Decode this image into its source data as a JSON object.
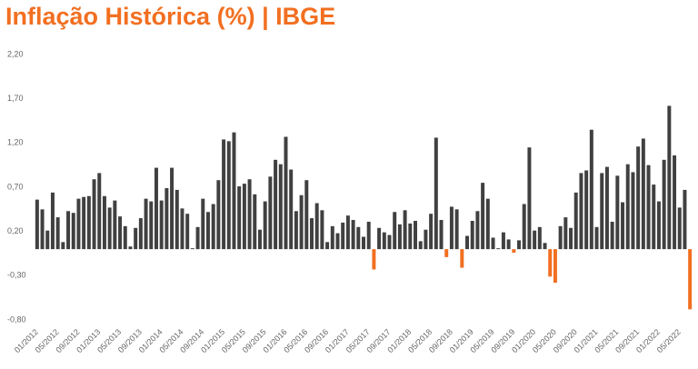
{
  "chart_data": {
    "type": "bar",
    "title": "Inflação Histórica (%) | IBGE",
    "categories": [
      "01/2012",
      null,
      null,
      null,
      "05/2012",
      null,
      null,
      null,
      "09/2012",
      null,
      null,
      null,
      "01/2013",
      null,
      null,
      null,
      "05/2013",
      null,
      null,
      null,
      "09/2013",
      null,
      null,
      null,
      "01/2014",
      null,
      null,
      null,
      "05/2014",
      null,
      null,
      null,
      "09/2014",
      null,
      null,
      null,
      "01/2015",
      null,
      null,
      null,
      "05/2015",
      null,
      null,
      null,
      "09/2015",
      null,
      null,
      null,
      "01/2016",
      null,
      null,
      null,
      "05/2016",
      null,
      null,
      null,
      "09/2016",
      null,
      null,
      null,
      "01/2017",
      null,
      null,
      null,
      "05/2017",
      null,
      null,
      null,
      "09/2017",
      null,
      null,
      null,
      "01/2018",
      null,
      null,
      null,
      "05/2018",
      null,
      null,
      null,
      "09/2018",
      null,
      null,
      null,
      "01/2019",
      null,
      null,
      null,
      "05/2019",
      null,
      null,
      null,
      "09/2019",
      null,
      null,
      null,
      "01/2020",
      null,
      null,
      null,
      "05/2020",
      null,
      null,
      null,
      "09/2020",
      null,
      null,
      null,
      "01/2021",
      null,
      null,
      null,
      "05/2021",
      null,
      null,
      null,
      "09/2021",
      null,
      null,
      null,
      "01/2022",
      null,
      null,
      null,
      "05/2022",
      null,
      null
    ],
    "values": [
      0.56,
      0.45,
      0.21,
      0.64,
      0.36,
      0.08,
      0.43,
      0.41,
      0.57,
      0.59,
      0.6,
      0.79,
      0.86,
      0.6,
      0.47,
      0.55,
      0.37,
      0.26,
      0.03,
      0.24,
      0.35,
      0.57,
      0.54,
      0.92,
      0.55,
      0.69,
      0.92,
      0.67,
      0.46,
      0.4,
      0.01,
      0.25,
      0.57,
      0.42,
      0.51,
      0.78,
      1.24,
      1.22,
      1.32,
      0.71,
      0.74,
      0.79,
      0.62,
      0.22,
      0.54,
      0.82,
      1.01,
      0.96,
      1.27,
      0.9,
      0.43,
      0.61,
      0.78,
      0.35,
      0.52,
      0.44,
      0.08,
      0.26,
      0.18,
      0.3,
      0.38,
      0.33,
      0.25,
      0.14,
      0.31,
      -0.23,
      0.24,
      0.19,
      0.16,
      0.42,
      0.28,
      0.44,
      0.29,
      0.32,
      0.09,
      0.22,
      0.4,
      1.26,
      0.33,
      -0.09,
      0.48,
      0.45,
      -0.21,
      0.15,
      0.32,
      0.43,
      0.75,
      0.57,
      0.13,
      0.01,
      0.19,
      0.11,
      -0.04,
      0.1,
      0.51,
      1.15,
      0.21,
      0.25,
      0.07,
      -0.31,
      -0.38,
      0.26,
      0.36,
      0.24,
      0.64,
      0.86,
      0.89,
      1.35,
      0.25,
      0.86,
      0.93,
      0.31,
      0.83,
      0.53,
      0.96,
      0.87,
      1.16,
      1.25,
      0.95,
      0.73,
      0.54,
      1.01,
      1.62,
      1.06,
      0.47,
      0.67,
      -0.68
    ],
    "color": "#404040",
    "negative_color": "#f26f21",
    "title_color": "#f26f21",
    "ylim": [
      -0.8,
      2.2
    ],
    "yticks": [
      {
        "value": -0.8,
        "label": "-0,80"
      },
      {
        "value": -0.3,
        "label": "-0,30"
      },
      {
        "value": 0.2,
        "label": "0,20"
      },
      {
        "value": 0.7,
        "label": "0,70"
      },
      {
        "value": 1.2,
        "label": "1,20"
      },
      {
        "value": 1.7,
        "label": "1,70"
      },
      {
        "value": 2.2,
        "label": "2,20"
      }
    ],
    "grid": false
  }
}
